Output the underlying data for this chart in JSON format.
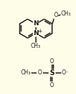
{
  "background_color": "#FDFDE8",
  "bond_color": "#1a1a1a",
  "lw": 1.1,
  "dpi": 100,
  "figsize": [
    1.08,
    1.34
  ],
  "xlim": [
    0,
    108
  ],
  "ylim": [
    0,
    134
  ]
}
